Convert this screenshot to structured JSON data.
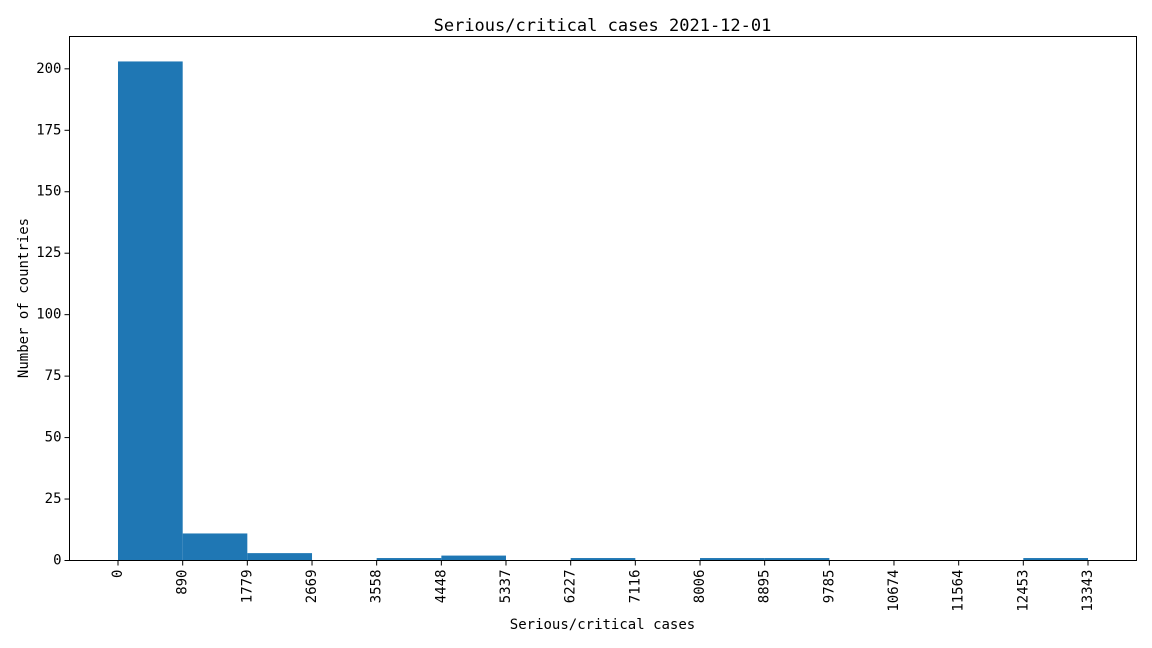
{
  "chart_data": {
    "type": "bar",
    "title": "Serious/critical cases 2021-12-01",
    "xlabel": "Serious/critical cases",
    "ylabel": "Number of countries",
    "bin_edges": [
      0,
      890,
      1779,
      2669,
      3558,
      4448,
      5337,
      6227,
      7116,
      8006,
      8895,
      9785,
      10674,
      11564,
      12453,
      13343
    ],
    "values": [
      203,
      11,
      3,
      0,
      1,
      2,
      0,
      1,
      0,
      1,
      1,
      0,
      0,
      0,
      1
    ],
    "x_ticks": [
      "0",
      "890",
      "1779",
      "2669",
      "3558",
      "4448",
      "5337",
      "6227",
      "7116",
      "8006",
      "8895",
      "9785",
      "10674",
      "11564",
      "12453",
      "13343"
    ],
    "y_ticks": [
      0,
      25,
      50,
      75,
      100,
      125,
      150,
      175,
      200
    ],
    "xlim": [
      -667,
      14010
    ],
    "ylim": [
      0,
      213.15
    ],
    "grid": false,
    "bar_color": "#1f77b4"
  }
}
